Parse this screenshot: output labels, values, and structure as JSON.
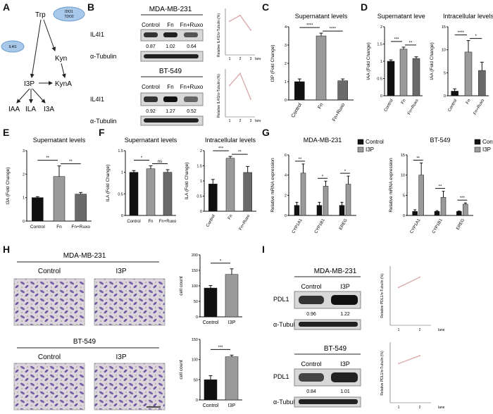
{
  "figure": {
    "panel_labels": [
      "A",
      "B",
      "C",
      "D",
      "E",
      "F",
      "G",
      "H",
      "I"
    ]
  },
  "pathway": {
    "trp": "Trp",
    "ido_tdo": [
      "IDO1",
      "TDO2"
    ],
    "il4i1": "IL4I1",
    "kyn": "Kyn",
    "i3p": "I3P",
    "kyna": "KynA",
    "iaa": "IAA",
    "ila": "ILA",
    "i3a": "I3A",
    "colors": {
      "ellipse": "#a8c8ea",
      "ellipse_stroke": "#6a9acb"
    }
  },
  "panel_b": {
    "blots": [
      {
        "cell_line": "MDA-MB-231",
        "lanes": [
          "Control",
          "Fn",
          "Fn+Ruxo"
        ],
        "target": "IL4I1",
        "loading": "α-Tubulin",
        "values": [
          "0.87",
          "1.02",
          "0.64"
        ],
        "plot_ylabel": "Relative IL4I1/α-Tubulin (%)",
        "plot_xticks": [
          "1",
          "2",
          "3"
        ],
        "plot_xlabel": "lane"
      },
      {
        "cell_line": "BT-549",
        "lanes": [
          "Control",
          "Fn",
          "Fn+Ruxo"
        ],
        "target": "IL4I1",
        "loading": "α-Tubulin",
        "values": [
          "0.92",
          "1.27",
          "0.52"
        ],
        "plot_ylabel": "Relative IL4I1/α-Tubulin (%)",
        "plot_xticks": [
          "1",
          "2",
          "3"
        ],
        "plot_xlabel": "lane"
      }
    ]
  },
  "panel_h": {
    "titles": [
      "MDA-MB-231",
      "BT-549"
    ],
    "conditions": [
      "Control",
      "I3P"
    ]
  },
  "panel_i": {
    "blots": [
      {
        "cell_line": "MDA-MB-231",
        "lanes": [
          "Control",
          "I3P"
        ],
        "target": "PDL1",
        "loading": "α-Tubulin",
        "values": [
          "0.96",
          "1.22"
        ],
        "plot_ylabel": "Relative PDL1/α-Tubulin (%)",
        "plot_xticks": [
          "1",
          "2"
        ],
        "plot_xlabel": "lane"
      },
      {
        "cell_line": "BT-549",
        "lanes": [
          "Control",
          "I3P"
        ],
        "target": "PDL1",
        "loading": "α-Tubulin",
        "values": [
          "0.84",
          "1.01"
        ],
        "plot_ylabel": "Relative PDL1/α-Tubulin (%)",
        "plot_xticks": [
          "1",
          "2"
        ],
        "plot_xlabel": "lane"
      }
    ]
  },
  "chart_data": [
    {
      "id": "B1",
      "type": "line",
      "x": [
        1,
        2,
        3
      ],
      "values": [
        0.87,
        1.02,
        0.64
      ],
      "ylabel": "Relative IL4I1/α-Tubulin (%)",
      "xlabel": "lane",
      "xticks": [
        "1",
        "2",
        "3"
      ],
      "ylim": [
        0,
        1.2
      ],
      "color": "#d9a6a6"
    },
    {
      "id": "B2",
      "type": "line",
      "x": [
        1,
        2,
        3
      ],
      "values": [
        0.92,
        1.27,
        0.52
      ],
      "ylabel": "Relative IL4I1/α-Tubulin (%)",
      "xlabel": "lane",
      "xticks": [
        "1",
        "2",
        "3"
      ],
      "ylim": [
        0,
        1.4
      ],
      "color": "#d9a6a6"
    },
    {
      "id": "C",
      "type": "bar",
      "title": "Supernatant levels",
      "categories": [
        "Control",
        "Fn",
        "Fn+Ruxo"
      ],
      "values": [
        1.0,
        3.5,
        1.05
      ],
      "errors": [
        0.15,
        0.15,
        0.1
      ],
      "ylabel": "I3P (Fold Change)",
      "ylim": [
        0,
        4
      ],
      "yticks": [
        0,
        1,
        2,
        3,
        4
      ],
      "colors": [
        "#111111",
        "#9a9a9a",
        "#6a6a6a"
      ],
      "sig": [
        {
          "from": 0,
          "to": 1,
          "label": "****"
        },
        {
          "from": 1,
          "to": 2,
          "label": "****"
        }
      ]
    },
    {
      "id": "D1",
      "type": "bar",
      "title": "Supernatant levels",
      "categories": [
        "Control",
        "Fn",
        "Fn+Ruxo"
      ],
      "values": [
        1.0,
        1.35,
        1.08
      ],
      "errors": [
        0.04,
        0.06,
        0.05
      ],
      "ylabel": "IAA (Fold Change)",
      "ylim": [
        0,
        2.0
      ],
      "yticks": [
        0,
        0.5,
        1.0,
        1.5,
        2.0
      ],
      "colors": [
        "#111111",
        "#9a9a9a",
        "#6a6a6a"
      ],
      "sig": [
        {
          "from": 0,
          "to": 1,
          "label": "***"
        },
        {
          "from": 1,
          "to": 2,
          "label": "**"
        }
      ]
    },
    {
      "id": "D2",
      "type": "bar",
      "title": "Intracellular levels",
      "categories": [
        "Control",
        "Fn",
        "Fn+Ruxo"
      ],
      "values": [
        1.0,
        9.5,
        5.5
      ],
      "errors": [
        0.5,
        2.5,
        1.8
      ],
      "ylabel": "IAA (Fold Change)",
      "ylim": [
        0,
        15
      ],
      "yticks": [
        0,
        5,
        10,
        15
      ],
      "colors": [
        "#111111",
        "#9a9a9a",
        "#6a6a6a"
      ],
      "sig": [
        {
          "from": 0,
          "to": 1,
          "label": "****"
        },
        {
          "from": 1,
          "to": 2,
          "label": "*"
        }
      ]
    },
    {
      "id": "E",
      "type": "bar",
      "title": "Supernatant levels",
      "categories": [
        "Control",
        "Fn",
        "Fn+Ruxo"
      ],
      "values": [
        1.0,
        1.9,
        1.15
      ],
      "errors": [
        0.04,
        0.45,
        0.07
      ],
      "ylabel": "I3A (Fold Change)",
      "ylim": [
        0,
        3
      ],
      "yticks": [
        0,
        1,
        2,
        3
      ],
      "colors": [
        "#111111",
        "#9a9a9a",
        "#6a6a6a"
      ],
      "sig": [
        {
          "from": 0,
          "to": 1,
          "label": "**"
        },
        {
          "from": 1,
          "to": 2,
          "label": "**"
        }
      ]
    },
    {
      "id": "F1",
      "type": "bar",
      "title": "Supernatant levels",
      "categories": [
        "Control",
        "Fn",
        "Fn+Ruxo"
      ],
      "values": [
        1.0,
        1.08,
        1.0
      ],
      "errors": [
        0.04,
        0.07,
        0.06
      ],
      "ylabel": "ILA (Fold Change)",
      "ylim": [
        0,
        1.5
      ],
      "yticks": [
        0,
        0.5,
        1.0,
        1.5
      ],
      "colors": [
        "#111111",
        "#9a9a9a",
        "#6a6a6a"
      ],
      "sig": [
        {
          "from": 0,
          "to": 1,
          "label": "*"
        },
        {
          "from": 1,
          "to": 2,
          "label": "ns"
        }
      ]
    },
    {
      "id": "F2",
      "type": "bar",
      "title": "Intracellular levels",
      "categories": [
        "Control",
        "Fn",
        "Fn+Ruxo"
      ],
      "values": [
        0.9,
        1.75,
        1.28
      ],
      "errors": [
        0.15,
        0.06,
        0.2
      ],
      "ylabel": "ILA (Fold Change)",
      "ylim": [
        0,
        2.0
      ],
      "yticks": [
        0,
        0.5,
        1.0,
        1.5,
        2.0
      ],
      "colors": [
        "#111111",
        "#9a9a9a",
        "#6a6a6a"
      ],
      "sig": [
        {
          "from": 0,
          "to": 1,
          "label": "***"
        },
        {
          "from": 1,
          "to": 2,
          "label": "**"
        }
      ]
    },
    {
      "id": "G1",
      "type": "bar",
      "title": "MDA-MB-231",
      "categories": [
        "CYP1A1",
        "CYP1B1",
        "EREG"
      ],
      "series": [
        {
          "name": "Control",
          "values": [
            1.0,
            1.0,
            1.0
          ],
          "errors": [
            0.3,
            0.3,
            0.3
          ],
          "color": "#111111"
        },
        {
          "name": "I3P",
          "values": [
            4.2,
            2.9,
            3.1
          ],
          "errors": [
            0.9,
            0.5,
            0.8
          ],
          "color": "#9a9a9a"
        }
      ],
      "ylabel": "Relative mRNA expression",
      "ylim": [
        0,
        6
      ],
      "yticks": [
        0,
        2,
        4,
        6
      ],
      "sig_labels": [
        "**",
        "*",
        "*"
      ]
    },
    {
      "id": "G2",
      "type": "bar",
      "title": "BT-549",
      "categories": [
        "CYP1A1",
        "CYP1B1",
        "EREG"
      ],
      "series": [
        {
          "name": "Control",
          "values": [
            1.0,
            1.0,
            1.0
          ],
          "errors": [
            0.4,
            0.2,
            0.1
          ],
          "color": "#111111"
        },
        {
          "name": "I3P",
          "values": [
            10.0,
            4.5,
            2.8
          ],
          "errors": [
            3.0,
            1.5,
            0.3
          ],
          "color": "#9a9a9a"
        }
      ],
      "ylabel": "Relative mRNA expression",
      "ylim": [
        0,
        15
      ],
      "yticks": [
        0,
        5,
        10,
        15
      ],
      "sig_labels": [
        "**",
        "**",
        "***"
      ]
    },
    {
      "id": "H1",
      "type": "bar",
      "categories": [
        "Control",
        "I3P"
      ],
      "values": [
        93,
        137
      ],
      "errors": [
        8,
        18
      ],
      "ylabel": "cell count",
      "ylim": [
        0,
        200
      ],
      "yticks": [
        0,
        50,
        100,
        150,
        200
      ],
      "colors": [
        "#111111",
        "#9a9a9a"
      ],
      "sig": [
        {
          "from": 0,
          "to": 1,
          "label": "*"
        }
      ]
    },
    {
      "id": "H2",
      "type": "bar",
      "categories": [
        "Control",
        "I3P"
      ],
      "values": [
        50,
        107
      ],
      "errors": [
        10,
        4
      ],
      "ylabel": "cell count",
      "ylim": [
        0,
        150
      ],
      "yticks": [
        0,
        50,
        100,
        150
      ],
      "colors": [
        "#111111",
        "#9a9a9a"
      ],
      "sig": [
        {
          "from": 0,
          "to": 1,
          "label": "***"
        }
      ]
    },
    {
      "id": "I1",
      "type": "line",
      "x": [
        1,
        2
      ],
      "values": [
        0.96,
        1.22
      ],
      "ylabel": "Relative PDL1/α-Tubulin (%)",
      "xlabel": "lane",
      "xticks": [
        "1",
        "2"
      ],
      "ylim": [
        0,
        1.5
      ],
      "color": "#d9a6a6"
    },
    {
      "id": "I2",
      "type": "line",
      "x": [
        1,
        2
      ],
      "values": [
        0.84,
        1.01
      ],
      "ylabel": "Relative PDL1/α-Tubulin (%)",
      "xlabel": "lane",
      "xticks": [
        "1",
        "2"
      ],
      "ylim": [
        0,
        1.3
      ],
      "color": "#d9a6a6"
    }
  ]
}
